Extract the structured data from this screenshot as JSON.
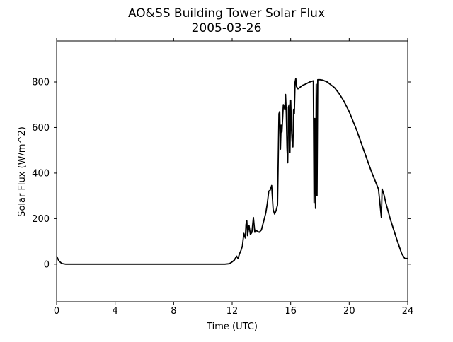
{
  "chart_data": {
    "type": "line",
    "title": "AO&SS Building Tower Solar Flux",
    "subtitle": "2005-03-26",
    "xlabel": "Time (UTC)",
    "ylabel": "Solar Flux (W/m^2)",
    "xlim": [
      0,
      24
    ],
    "ylim": [
      -165,
      980
    ],
    "xticks": [
      0,
      4,
      8,
      12,
      16,
      20,
      24
    ],
    "yticks": [
      0,
      200,
      400,
      600,
      800
    ],
    "grid": false,
    "line_color": "#000000",
    "series": [
      {
        "x": [
          0.0,
          0.15,
          0.35,
          0.6,
          1.0,
          2.0,
          4.0,
          6.0,
          8.0,
          10.0,
          11.5,
          11.8,
          12.0,
          12.15,
          12.3,
          12.4,
          12.5,
          12.6,
          12.7,
          12.8,
          12.9,
          12.95,
          13.0,
          13.05,
          13.15,
          13.25,
          13.35,
          13.45,
          13.55,
          13.6,
          13.7,
          13.85,
          14.0,
          14.1,
          14.2,
          14.3,
          14.4,
          14.5,
          14.6,
          14.7,
          14.8,
          14.9,
          15.0,
          15.1,
          15.2,
          15.25,
          15.3,
          15.35,
          15.4,
          15.5,
          15.6,
          15.65,
          15.7,
          15.75,
          15.8,
          15.85,
          15.9,
          15.95,
          16.0,
          16.05,
          16.1,
          16.15,
          16.2,
          16.25,
          16.3,
          16.35,
          16.4,
          16.5,
          16.6,
          16.7,
          16.8,
          17.0,
          17.3,
          17.55,
          17.6,
          17.65,
          17.7,
          17.75,
          17.8,
          17.85,
          17.9,
          17.95,
          18.0,
          18.2,
          18.5,
          18.8,
          19.0,
          19.3,
          19.6,
          20.0,
          20.5,
          21.0,
          21.5,
          22.0,
          22.2,
          22.25,
          22.3,
          22.4,
          22.5,
          22.8,
          23.0,
          23.3,
          23.6,
          23.8,
          24.0
        ],
        "y": [
          35,
          15,
          3,
          0,
          0,
          0,
          0,
          0,
          0,
          0,
          0,
          2,
          10,
          18,
          35,
          25,
          45,
          60,
          80,
          135,
          115,
          175,
          190,
          125,
          170,
          130,
          140,
          205,
          140,
          150,
          145,
          140,
          150,
          175,
          200,
          225,
          265,
          320,
          325,
          345,
          240,
          220,
          235,
          260,
          660,
          670,
          505,
          610,
          580,
          700,
          680,
          745,
          660,
          510,
          445,
          690,
          700,
          490,
          720,
          600,
          540,
          515,
          680,
          660,
          800,
          815,
          780,
          770,
          775,
          780,
          785,
          790,
          800,
          805,
          270,
          640,
          245,
          790,
          300,
          810,
          810,
          810,
          810,
          808,
          800,
          785,
          775,
          750,
          720,
          670,
          590,
          500,
          410,
          330,
          205,
          330,
          320,
          300,
          270,
          200,
          160,
          100,
          45,
          25,
          25
        ]
      }
    ]
  }
}
